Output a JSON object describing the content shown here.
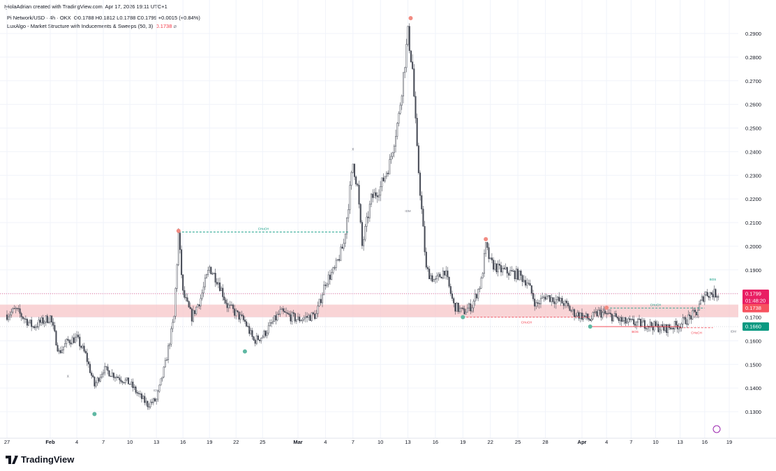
{
  "header": {
    "credit": "IyiolaAdrian created with TradingView.com, Apr 17, 2026 19:11 UTC+1"
  },
  "legend": {
    "symbol": "Pi Network/USD · 4h · OKX",
    "ohlc": "O0.1788  H0.1812  L0.1788  C0.1799  +0.0015 (+0.84%)",
    "indicator": "LuxAlgo - Market Structure with Inducements & Sweeps (50, 3)",
    "indicator_value": "0.1738",
    "indicator_icon": "eye-off-icon"
  },
  "brand": {
    "name": "TradingView"
  },
  "colors": {
    "up": "#131722",
    "zone": "#f7c5c8",
    "bull": "#089981",
    "bear": "#f23645",
    "price_badge": "#e91e63",
    "indicator_badge": "#f7525f",
    "support_badge": "#089981"
  },
  "chart_data": {
    "type": "candlestick",
    "symbol": "Pi Network/USD",
    "interval": "4h",
    "ylim": [
      0.125,
      0.3
    ],
    "y_ticks": [
      "0.2900",
      "0.2800",
      "0.2700",
      "0.2600",
      "0.2500",
      "0.2400",
      "0.2300",
      "0.2200",
      "0.2100",
      "0.2000",
      "0.1900",
      "0.1700",
      "0.1600",
      "0.1500",
      "0.1400",
      "0.1300"
    ],
    "x_ticks": [
      {
        "label": "27",
        "date": "01-27"
      },
      {
        "label": "Feb",
        "date": "02-01"
      },
      {
        "label": "4",
        "date": "02-04"
      },
      {
        "label": "7",
        "date": "02-07"
      },
      {
        "label": "10",
        "date": "02-10"
      },
      {
        "label": "13",
        "date": "02-13"
      },
      {
        "label": "16",
        "date": "02-16"
      },
      {
        "label": "19",
        "date": "02-19"
      },
      {
        "label": "22",
        "date": "02-22"
      },
      {
        "label": "25",
        "date": "02-25"
      },
      {
        "label": "Mar",
        "date": "03-01"
      },
      {
        "label": "4",
        "date": "03-04"
      },
      {
        "label": "7",
        "date": "03-07"
      },
      {
        "label": "10",
        "date": "03-10"
      },
      {
        "label": "13",
        "date": "03-13"
      },
      {
        "label": "16",
        "date": "03-16"
      },
      {
        "label": "19",
        "date": "03-19"
      },
      {
        "label": "22",
        "date": "03-22"
      },
      {
        "label": "25",
        "date": "03-25"
      },
      {
        "label": "28",
        "date": "03-28"
      },
      {
        "label": "Apr",
        "date": "04-01"
      },
      {
        "label": "4",
        "date": "04-04"
      },
      {
        "label": "7",
        "date": "04-07"
      },
      {
        "label": "10",
        "date": "04-10"
      },
      {
        "label": "13",
        "date": "04-13"
      },
      {
        "label": "16",
        "date": "04-16"
      },
      {
        "label": "19",
        "date": "04-19"
      }
    ],
    "price_path": [
      [
        "01-27",
        0.171
      ],
      [
        "01-28",
        0.173
      ],
      [
        "01-30",
        0.166
      ],
      [
        "02-01",
        0.17
      ],
      [
        "02-02",
        0.155
      ],
      [
        "02-03",
        0.16
      ],
      [
        "02-04",
        0.161
      ],
      [
        "02-05",
        0.154
      ],
      [
        "02-06",
        0.141
      ],
      [
        "02-07",
        0.148
      ],
      [
        "02-08",
        0.146
      ],
      [
        "02-10",
        0.142
      ],
      [
        "02-11",
        0.137
      ],
      [
        "02-12",
        0.133
      ],
      [
        "02-13",
        0.135
      ],
      [
        "02-14",
        0.15
      ],
      [
        "02-15",
        0.17
      ],
      [
        "02-15.5",
        0.205
      ],
      [
        "02-16",
        0.18
      ],
      [
        "02-17",
        0.17
      ],
      [
        "02-18",
        0.178
      ],
      [
        "02-19",
        0.191
      ],
      [
        "02-20",
        0.185
      ],
      [
        "02-21",
        0.175
      ],
      [
        "02-23",
        0.168
      ],
      [
        "02-24",
        0.16
      ],
      [
        "02-25",
        0.162
      ],
      [
        "02-26",
        0.167
      ],
      [
        "02-27",
        0.172
      ],
      [
        "03-01",
        0.169
      ],
      [
        "03-03",
        0.171
      ],
      [
        "03-04",
        0.185
      ],
      [
        "03-05",
        0.19
      ],
      [
        "03-06",
        0.201
      ],
      [
        "03-07",
        0.235
      ],
      [
        "03-07.5",
        0.225
      ],
      [
        "03-08",
        0.2
      ],
      [
        "03-09",
        0.22
      ],
      [
        "03-10",
        0.225
      ],
      [
        "03-11",
        0.235
      ],
      [
        "03-12",
        0.255
      ],
      [
        "03-13",
        0.29
      ],
      [
        "03-13.5",
        0.275
      ],
      [
        "03-14",
        0.24
      ],
      [
        "03-14.5",
        0.215
      ],
      [
        "03-15",
        0.19
      ],
      [
        "03-16",
        0.185
      ],
      [
        "03-17",
        0.19
      ],
      [
        "03-18",
        0.175
      ],
      [
        "03-19",
        0.172
      ],
      [
        "03-20",
        0.175
      ],
      [
        "03-21",
        0.185
      ],
      [
        "03-21.5",
        0.2
      ],
      [
        "03-22",
        0.193
      ],
      [
        "03-23",
        0.19
      ],
      [
        "03-25",
        0.188
      ],
      [
        "03-26",
        0.185
      ],
      [
        "03-27",
        0.175
      ],
      [
        "03-28",
        0.179
      ],
      [
        "03-30",
        0.176
      ],
      [
        "03-31",
        0.172
      ],
      [
        "04-02",
        0.169
      ],
      [
        "04-03",
        0.172
      ],
      [
        "04-05",
        0.17
      ],
      [
        "04-06",
        0.168
      ],
      [
        "04-09",
        0.167
      ],
      [
        "04-11",
        0.165
      ],
      [
        "04-13",
        0.167
      ],
      [
        "04-15",
        0.172
      ],
      [
        "04-16",
        0.18
      ],
      [
        "04-17.8",
        0.1799
      ]
    ],
    "zone": {
      "top": 0.1753,
      "bottom": 0.17
    },
    "swing_highs": [
      [
        "02-15.5",
        0.2065
      ],
      [
        "03-13.3",
        0.2965
      ],
      [
        "03-21.5",
        0.203
      ],
      [
        "04-04",
        0.174
      ]
    ],
    "swing_lows": [
      [
        "02-06",
        0.129
      ],
      [
        "02-23",
        0.1555
      ],
      [
        "03-19",
        0.17
      ],
      [
        "04-02",
        0.166
      ]
    ],
    "structure": [
      {
        "label": "CHoCH",
        "level": 0.206,
        "from": "02-15.5",
        "to": "03-06.5",
        "color": "bull",
        "style": "dashed"
      },
      {
        "label": "CHoCH",
        "level": 0.1738,
        "from": "04-04",
        "to": "04-16",
        "color": "bull",
        "style": "dashed"
      },
      {
        "label": "BOS",
        "level": 0.166,
        "from": "04-02",
        "to": "04-13",
        "color": "bear",
        "style": "solid"
      },
      {
        "label": "CHoCH",
        "level": 0.1655,
        "from": "04-13",
        "to": "04-17",
        "color": "bear",
        "style": "dashed"
      },
      {
        "label": "CHoCH",
        "level": 0.17,
        "from": "03-19",
        "to": "04-02",
        "color": "bear",
        "style": "dashed"
      }
    ],
    "markers": [
      {
        "label": "x",
        "date": "03-07",
        "price": 0.2405
      },
      {
        "label": "IDM",
        "date": "03-13",
        "price": 0.2145
      },
      {
        "label": "IDM",
        "date": "02-13",
        "price": 0.1385
      },
      {
        "label": "x",
        "date": "02-03",
        "price": 0.1445
      },
      {
        "label": "BOS",
        "date": "04-17",
        "price": 0.1855
      },
      {
        "label": "IDM",
        "date": "04-03.5",
        "price": 0.1728
      },
      {
        "label": "IDM",
        "date": "04-15",
        "price": 0.1695
      },
      {
        "label": "IDM",
        "date": "04-19.5",
        "price": 0.1635
      }
    ],
    "last_price": {
      "value": "0.1799",
      "countdown": "01:48:20"
    },
    "indicator_price": "0.1738",
    "support_price": "0.1660"
  }
}
